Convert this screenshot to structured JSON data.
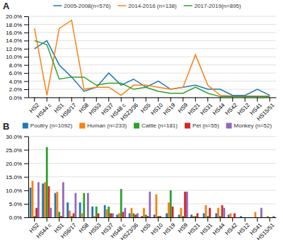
{
  "chart_data": [
    {
      "type": "line",
      "title": "A",
      "categories": [
        "HS2",
        "HS44 c",
        "HS1",
        "HS6/17",
        "HS8",
        "HS53",
        "HS37",
        "HS48 c",
        "HS23/36",
        "HS5",
        "HS10",
        "HS19",
        "HS9",
        "HS21",
        "HS31",
        "HS44",
        "HS42",
        "HS12",
        "HS41",
        "HS15/51"
      ],
      "series": [
        {
          "name": "2005-2008(n=576)",
          "values": [
            12.0,
            14.0,
            8.0,
            5.0,
            1.5,
            2.5,
            6.0,
            3.0,
            4.5,
            2.5,
            4.0,
            2.0,
            2.5,
            3.0,
            2.0,
            2.0,
            0.5,
            0.5,
            2.0,
            0.5
          ]
        },
        {
          "name": "2014-2016 (n=138)",
          "values": [
            17.0,
            0.5,
            17.0,
            19.0,
            2.0,
            2.5,
            2.5,
            0.5,
            3.0,
            3.0,
            2.5,
            2.0,
            2.5,
            10.5,
            3.0,
            0.5,
            0.3,
            0.3,
            0.3,
            0.3
          ]
        },
        {
          "name": "2017-2019(n=895)",
          "values": [
            14.0,
            13.0,
            4.5,
            5.0,
            5.0,
            3.0,
            3.5,
            3.5,
            2.0,
            2.5,
            1.5,
            1.0,
            1.0,
            2.5,
            1.0,
            0.2,
            0.2,
            0.2,
            0.2,
            0.2
          ]
        }
      ],
      "ylim": [
        0,
        20.0
      ],
      "yticks": [
        {
          "value": 0.0,
          "label": "0.0%"
        },
        {
          "value": 2.0,
          "label": "2.0%"
        },
        {
          "value": 4.0,
          "label": "4.0%"
        },
        {
          "value": 6.0,
          "label": "6.0%"
        },
        {
          "value": 8.0,
          "label": "8.0%"
        },
        {
          "value": 10.0,
          "label": "10.0%"
        },
        {
          "value": 12.0,
          "label": "12.0%"
        },
        {
          "value": 14.0,
          "label": "14.0%"
        },
        {
          "value": 16.0,
          "label": "16.0%"
        },
        {
          "value": 18.0,
          "label": "18.0%"
        },
        {
          "value": 20.0,
          "label": "20.0%"
        }
      ],
      "grid": true,
      "legend": "top"
    },
    {
      "type": "bar",
      "title": "B",
      "categories": [
        "HS2",
        "HS44 c",
        "HS1",
        "HS6/17",
        "HS8",
        "HS53",
        "HS37",
        "HS48 c",
        "HS23/36",
        "HS5",
        "HS10",
        "HS19",
        "HS9",
        "HS21",
        "HS31",
        "HS44",
        "HS42",
        "HS12",
        "HS41",
        "HS15/51"
      ],
      "series": [
        {
          "name": "Poultry (n=1092)",
          "values": [
            11.0,
            12.5,
            9.0,
            5.5,
            5.5,
            4.0,
            4.5,
            1.0,
            1.5,
            0.5,
            1.0,
            1.5,
            1.0,
            1.0,
            1.5,
            1.5,
            1.0,
            0.5,
            0.0,
            0.0
          ]
        },
        {
          "name": "Human (n=233)",
          "values": [
            13.5,
            13.0,
            9.5,
            2.5,
            1.5,
            0.5,
            3.0,
            1.5,
            3.5,
            3.5,
            8.5,
            5.5,
            3.5,
            0.5,
            4.5,
            3.5,
            1.5,
            0.0,
            2.0,
            0.5
          ]
        },
        {
          "name": "Cattle (n=181)",
          "values": [
            0.5,
            26.0,
            2.0,
            0.5,
            9.0,
            4.0,
            4.0,
            10.5,
            1.5,
            1.0,
            0.5,
            10.0,
            0.5,
            0.5,
            0.5,
            0.5,
            0.0,
            0.0,
            0.0,
            0.0
          ]
        },
        {
          "name": "Pet (n=55)",
          "values": [
            3.5,
            11.5,
            0.5,
            1.5,
            0.0,
            1.5,
            1.5,
            2.0,
            1.0,
            0.5,
            0.5,
            4.0,
            9.5,
            1.5,
            3.5,
            4.5,
            1.5,
            0.0,
            0.0,
            0.0
          ]
        },
        {
          "name": "Monkey (n=52)",
          "values": [
            13.0,
            3.5,
            13.0,
            9.0,
            9.0,
            0.0,
            1.5,
            3.5,
            1.5,
            9.5,
            0.0,
            0.0,
            9.5,
            0.0,
            0.0,
            3.5,
            0.0,
            0.0,
            3.5,
            0.5
          ]
        }
      ],
      "ylim": [
        0,
        30.0
      ],
      "yticks": [
        {
          "value": 0.0,
          "label": "0.0%"
        },
        {
          "value": 5.0,
          "label": "5.0%"
        },
        {
          "value": 10.0,
          "label": "10.0%"
        },
        {
          "value": 15.0,
          "label": "15.0%"
        },
        {
          "value": 20.0,
          "label": "20.0%"
        },
        {
          "value": 25.0,
          "label": "25.0%"
        },
        {
          "value": 30.0,
          "label": "30.0%"
        }
      ],
      "grid": true,
      "legend": "top"
    }
  ]
}
